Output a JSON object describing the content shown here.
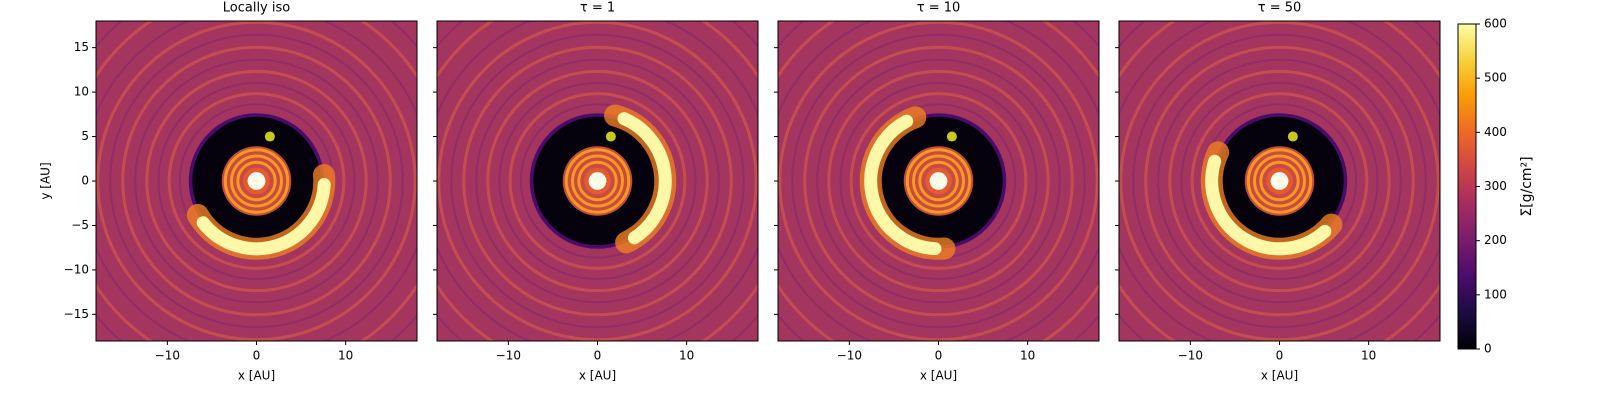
{
  "chart_data": [
    {
      "type": "image",
      "title": "Locally iso",
      "xlabel": "x [AU]",
      "ylabel": "y [AU]",
      "xlim": [
        -18,
        18
      ],
      "ylim": [
        -18,
        18
      ],
      "xticks": [
        {
          "value": -10,
          "label": "−10"
        },
        0,
        10
      ],
      "yticks": [
        {
          "value": -15,
          "label": "−15"
        },
        {
          "value": -10,
          "label": "−10"
        },
        {
          "value": -5,
          "label": "−5"
        },
        0,
        5,
        10,
        15
      ],
      "planet": {
        "x": 1.5,
        "y": 5,
        "color": "#c8c81e"
      }
    },
    {
      "type": "image",
      "title": "τ = 1",
      "xlabel": "x [AU]",
      "xlim": [
        -18,
        18
      ],
      "ylim": [
        -18,
        18
      ],
      "xticks": [
        {
          "value": -10,
          "label": "−10"
        },
        0,
        10
      ],
      "yticks": [
        -15,
        -10,
        -5,
        0,
        5,
        10,
        15
      ],
      "show_ytick_labels": false,
      "planet": {
        "x": 1.5,
        "y": 5,
        "color": "#c8c81e"
      }
    },
    {
      "type": "image",
      "title": "τ = 10",
      "xlabel": "x [AU]",
      "xlim": [
        -18,
        18
      ],
      "ylim": [
        -18,
        18
      ],
      "xticks": [
        {
          "value": -10,
          "label": "−10"
        },
        0,
        10
      ],
      "yticks": [
        -15,
        -10,
        -5,
        0,
        5,
        10,
        15
      ],
      "show_ytick_labels": false,
      "planet": {
        "x": 1.5,
        "y": 5,
        "color": "#c8c81e"
      }
    },
    {
      "type": "image",
      "title": "τ = 50",
      "xlabel": "x [AU]",
      "xlim": [
        -18,
        18
      ],
      "ylim": [
        -18,
        18
      ],
      "xticks": [
        {
          "value": -10,
          "label": "−10"
        },
        0,
        10
      ],
      "yticks": [
        -15,
        -10,
        -5,
        0,
        5,
        10,
        15
      ],
      "show_ytick_labels": false,
      "planet": {
        "x": 1.5,
        "y": 5,
        "color": "#c8c81e"
      }
    },
    {
      "type": "colorbar",
      "label": "Σ[g/cm²]",
      "colormap": "inferno",
      "lim": [
        0,
        600
      ],
      "ticks": [
        0,
        100,
        200,
        300,
        400,
        500,
        600
      ]
    }
  ]
}
